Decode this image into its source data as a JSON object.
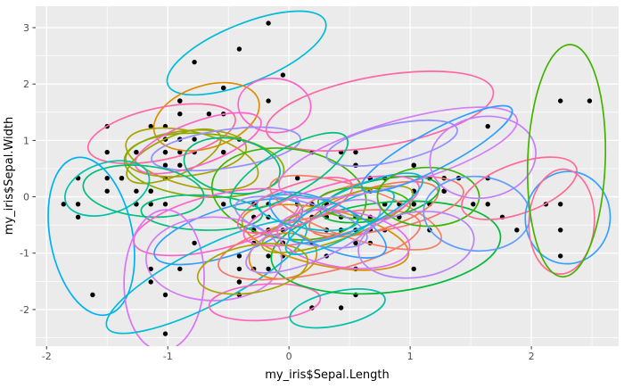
{
  "chart_data": {
    "type": "scatter",
    "title": "",
    "xlabel": "my_iris$Sepal.Length",
    "ylabel": "my_iris$Sepal.Width",
    "xlim": [
      -2.09,
      2.72
    ],
    "ylim": [
      -2.65,
      3.38
    ],
    "x_ticks": [
      -2,
      -1,
      0,
      1,
      2
    ],
    "y_ticks": [
      3,
      2,
      1,
      0,
      -1,
      -2
    ],
    "x_tick_labels": [
      "-2",
      "-1",
      "0",
      "1",
      "2"
    ],
    "y_tick_labels": [
      "3",
      "2",
      "1",
      "0",
      "-1",
      "-2"
    ],
    "grid": true,
    "legend": "none",
    "style": {
      "panel_bg": "#EBEBEB",
      "grid_color": "#FFFFFF",
      "point_color": "#000000",
      "point_radius": 2.7,
      "ellipse_stroke_width": 1.7,
      "tick_color": "#333333",
      "tick_label_color": "#4D4D4D",
      "axis_title_color": "#000000"
    },
    "points_note": "standardized iris data: x=scale(Sepal.Length), y=scale(Sepal.Width)",
    "points": [
      [
        -0.9,
        1.02
      ],
      [
        -1.14,
        -0.13
      ],
      [
        -1.38,
        0.33
      ],
      [
        -1.5,
        0.1
      ],
      [
        -1.02,
        1.25
      ],
      [
        -0.54,
        1.93
      ],
      [
        -1.5,
        0.79
      ],
      [
        -1.02,
        0.79
      ],
      [
        -1.74,
        -0.36
      ],
      [
        -1.14,
        0.1
      ],
      [
        -0.54,
        1.47
      ],
      [
        -1.26,
        0.79
      ],
      [
        -1.26,
        -0.13
      ],
      [
        -1.86,
        -0.13
      ],
      [
        -0.05,
        2.16
      ],
      [
        -0.17,
        3.08
      ],
      [
        -0.54,
        1.93
      ],
      [
        -0.9,
        1.02
      ],
      [
        -0.17,
        1.7
      ],
      [
        -0.9,
        1.7
      ],
      [
        -0.54,
        0.79
      ],
      [
        -0.9,
        1.47
      ],
      [
        -1.5,
        1.25
      ],
      [
        -0.9,
        0.56
      ],
      [
        -1.26,
        0.79
      ],
      [
        -1.02,
        -0.13
      ],
      [
        -1.02,
        0.79
      ],
      [
        -0.78,
        1.02
      ],
      [
        -0.78,
        0.79
      ],
      [
        -1.38,
        0.33
      ],
      [
        -1.26,
        0.1
      ],
      [
        -0.54,
        0.79
      ],
      [
        -0.78,
        2.39
      ],
      [
        -0.41,
        2.62
      ],
      [
        -1.14,
        0.1
      ],
      [
        -1.02,
        0.33
      ],
      [
        -0.41,
        1.02
      ],
      [
        -1.14,
        1.25
      ],
      [
        -1.74,
        -0.13
      ],
      [
        -0.9,
        0.79
      ],
      [
        -1.02,
        1.02
      ],
      [
        -1.62,
        -1.74
      ],
      [
        -1.74,
        0.33
      ],
      [
        -1.02,
        1.02
      ],
      [
        -0.9,
        1.7
      ],
      [
        -1.26,
        -0.13
      ],
      [
        -0.9,
        1.7
      ],
      [
        -1.5,
        0.33
      ],
      [
        -0.66,
        1.47
      ],
      [
        -1.02,
        0.56
      ],
      [
        1.4,
        0.33
      ],
      [
        0.67,
        0.33
      ],
      [
        1.28,
        0.1
      ],
      [
        -0.41,
        -1.74
      ],
      [
        0.79,
        -0.59
      ],
      [
        -0.17,
        -0.59
      ],
      [
        0.55,
        0.56
      ],
      [
        -1.14,
        -1.51
      ],
      [
        0.91,
        -0.36
      ],
      [
        -0.78,
        -0.82
      ],
      [
        -1.02,
        -2.43
      ],
      [
        0.07,
        -0.13
      ],
      [
        0.19,
        -1.97
      ],
      [
        0.31,
        -0.36
      ],
      [
        -0.29,
        -0.36
      ],
      [
        1.03,
        0.1
      ],
      [
        -0.29,
        -0.13
      ],
      [
        -0.05,
        -0.82
      ],
      [
        0.43,
        -1.97
      ],
      [
        -0.29,
        -1.28
      ],
      [
        0.07,
        0.33
      ],
      [
        0.31,
        -0.59
      ],
      [
        0.55,
        -1.28
      ],
      [
        0.31,
        -0.59
      ],
      [
        0.67,
        -0.36
      ],
      [
        0.91,
        -0.13
      ],
      [
        1.16,
        -0.59
      ],
      [
        1.03,
        -0.13
      ],
      [
        0.19,
        -0.36
      ],
      [
        -0.17,
        -1.05
      ],
      [
        -0.41,
        -1.51
      ],
      [
        -0.41,
        -1.51
      ],
      [
        -0.05,
        -0.82
      ],
      [
        0.19,
        -0.82
      ],
      [
        -0.54,
        -0.13
      ],
      [
        0.19,
        0.79
      ],
      [
        1.03,
        0.1
      ],
      [
        0.55,
        -1.74
      ],
      [
        -0.29,
        -0.13
      ],
      [
        -0.41,
        -1.28
      ],
      [
        -0.41,
        -1.05
      ],
      [
        0.31,
        -0.13
      ],
      [
        -0.05,
        -1.05
      ],
      [
        -1.02,
        -1.74
      ],
      [
        -0.29,
        -0.82
      ],
      [
        -0.17,
        -0.13
      ],
      [
        -0.17,
        -0.36
      ],
      [
        0.43,
        -0.36
      ],
      [
        -0.9,
        -1.28
      ],
      [
        -0.17,
        -0.59
      ],
      [
        0.55,
        0.56
      ],
      [
        -0.05,
        -0.82
      ],
      [
        1.52,
        -0.13
      ],
      [
        0.55,
        -0.36
      ],
      [
        0.79,
        -0.13
      ],
      [
        2.12,
        -0.13
      ],
      [
        -1.14,
        -1.28
      ],
      [
        1.76,
        -0.36
      ],
      [
        1.03,
        -1.28
      ],
      [
        1.64,
        1.25
      ],
      [
        0.79,
        0.33
      ],
      [
        0.67,
        -0.82
      ],
      [
        1.16,
        -0.13
      ],
      [
        -0.17,
        -1.28
      ],
      [
        -0.05,
        -0.59
      ],
      [
        0.67,
        0.33
      ],
      [
        0.79,
        -0.13
      ],
      [
        2.24,
        1.7
      ],
      [
        2.24,
        -1.05
      ],
      [
        0.19,
        -1.97
      ],
      [
        1.28,
        0.33
      ],
      [
        -0.29,
        -0.59
      ],
      [
        2.24,
        -0.59
      ],
      [
        0.55,
        -0.82
      ],
      [
        1.03,
        0.56
      ],
      [
        1.64,
        0.33
      ],
      [
        0.43,
        -0.59
      ],
      [
        0.31,
        -0.13
      ],
      [
        0.67,
        -0.59
      ],
      [
        1.64,
        -0.13
      ],
      [
        1.88,
        -0.59
      ],
      [
        2.48,
        1.7
      ],
      [
        0.67,
        -0.59
      ],
      [
        0.55,
        -0.59
      ],
      [
        0.31,
        -1.05
      ],
      [
        2.24,
        -0.13
      ],
      [
        0.55,
        0.79
      ],
      [
        0.67,
        0.1
      ],
      [
        0.19,
        -0.13
      ],
      [
        1.28,
        0.1
      ],
      [
        1.03,
        0.1
      ],
      [
        1.28,
        0.1
      ],
      [
        -0.05,
        -0.82
      ],
      [
        1.16,
        0.33
      ],
      [
        1.03,
        0.56
      ],
      [
        1.03,
        -0.13
      ],
      [
        0.55,
        -1.28
      ],
      [
        0.79,
        -0.13
      ],
      [
        0.43,
        0.79
      ],
      [
        0.07,
        -0.13
      ]
    ],
    "ellipse_format": [
      "cx",
      "cy",
      "rx",
      "ry",
      "rot_deg",
      "color"
    ],
    "ellipses": [
      [
        -0.35,
        2.55,
        0.7,
        0.52,
        -22,
        "#00BCD8"
      ],
      [
        0.75,
        1.52,
        0.95,
        0.62,
        -10,
        "#FF67A4"
      ],
      [
        -0.68,
        1.42,
        0.45,
        0.55,
        -18,
        "#DE8C00"
      ],
      [
        -0.12,
        1.62,
        0.3,
        0.48,
        4,
        "#FF61C9"
      ],
      [
        -1.05,
        1.12,
        0.62,
        0.46,
        -12,
        "#FF67A4"
      ],
      [
        -0.85,
        0.77,
        0.5,
        0.4,
        -6,
        "#A3A500"
      ],
      [
        -0.8,
        0.67,
        0.56,
        0.48,
        14,
        "#A9A400"
      ],
      [
        -0.95,
        0.72,
        0.42,
        0.34,
        -24,
        "#9DA400"
      ],
      [
        -0.7,
        0.56,
        0.66,
        0.56,
        4,
        "#84AD00"
      ],
      [
        -0.52,
        0.85,
        0.62,
        0.34,
        -8,
        "#9590FF"
      ],
      [
        -0.75,
        0.95,
        0.55,
        0.38,
        -20,
        "#FF61C9"
      ],
      [
        0.0,
        0.05,
        0.64,
        0.8,
        8,
        "#39B600"
      ],
      [
        -1.5,
        0.15,
        0.36,
        0.45,
        -18,
        "#00C1A9"
      ],
      [
        -1.2,
        0.1,
        0.5,
        0.45,
        6,
        "#00BF7D"
      ],
      [
        -0.47,
        0.55,
        0.4,
        0.48,
        10,
        "#00BA7F"
      ],
      [
        -1.63,
        -0.7,
        0.34,
        1.42,
        -11,
        "#00B0F6"
      ],
      [
        -0.72,
        -0.28,
        0.5,
        0.31,
        2,
        "#00BF7D"
      ],
      [
        -0.6,
        -0.45,
        0.7,
        0.48,
        -14,
        "#FF61C9"
      ],
      [
        -0.5,
        -0.62,
        0.64,
        0.42,
        -18,
        "#2E9FFF"
      ],
      [
        -1.03,
        -1.48,
        0.33,
        1.25,
        2,
        "#DA72FB"
      ],
      [
        -0.62,
        -1.1,
        0.56,
        0.74,
        0,
        "#D57BF7"
      ],
      [
        -0.68,
        -1.42,
        0.92,
        0.5,
        -27,
        "#00BCD8"
      ],
      [
        -0.2,
        -1.87,
        0.46,
        0.32,
        -4,
        "#FF64C2"
      ],
      [
        0.4,
        -1.98,
        0.4,
        0.3,
        -12,
        "#00C1A9"
      ],
      [
        0.8,
        -0.9,
        0.95,
        0.8,
        -6,
        "#00BA38"
      ],
      [
        -0.05,
        -1.05,
        0.28,
        0.4,
        -8,
        "#DE8C00"
      ],
      [
        0.3,
        -0.72,
        0.7,
        0.5,
        12,
        "#D89000"
      ],
      [
        0.25,
        -0.85,
        0.85,
        0.5,
        -12,
        "#F8766D"
      ],
      [
        0.75,
        -0.15,
        0.7,
        0.45,
        -10,
        "#F8766D"
      ],
      [
        0.7,
        -0.22,
        0.55,
        0.38,
        -16,
        "#F07852"
      ],
      [
        0.55,
        -0.28,
        0.74,
        0.46,
        18,
        "#FA7E64"
      ],
      [
        0.75,
        -0.05,
        0.5,
        0.35,
        -12,
        "#00BA38"
      ],
      [
        0.62,
        -0.12,
        0.38,
        0.28,
        2,
        "#39B600"
      ],
      [
        0.4,
        -0.4,
        0.66,
        0.36,
        -20,
        "#A3A500"
      ],
      [
        0.32,
        -0.5,
        0.52,
        0.4,
        24,
        "#2E9FFF"
      ],
      [
        0.1,
        -0.45,
        0.56,
        0.36,
        14,
        "#9590FF"
      ],
      [
        0.2,
        -0.7,
        0.6,
        0.42,
        -24,
        "#B983FF"
      ],
      [
        0.45,
        -0.75,
        0.55,
        0.5,
        8,
        "#E76BF3"
      ],
      [
        0.35,
        -0.25,
        0.75,
        0.45,
        -16,
        "#FF61C9"
      ],
      [
        0.42,
        -0.45,
        0.5,
        0.3,
        -28,
        "#00C0C4"
      ],
      [
        0.15,
        -0.28,
        0.42,
        0.28,
        10,
        "#00BCD8"
      ],
      [
        0.55,
        -0.2,
        0.6,
        0.36,
        -24,
        "#00B8E0"
      ],
      [
        0.9,
        0.78,
        1.02,
        0.56,
        -16,
        "#D57BF7"
      ],
      [
        1.22,
        0.85,
        0.7,
        0.33,
        -28,
        "#2E9FFF"
      ],
      [
        1.15,
        0.0,
        0.42,
        0.52,
        0,
        "#39B600"
      ],
      [
        1.6,
        0.7,
        0.44,
        0.72,
        -10,
        "#C77CFF"
      ],
      [
        1.55,
        -0.3,
        0.44,
        0.66,
        4,
        "#619CFF"
      ],
      [
        1.9,
        0.15,
        0.5,
        0.44,
        -20,
        "#FF6B94"
      ],
      [
        2.3,
        -0.37,
        0.35,
        0.82,
        6,
        "#35A2FF"
      ],
      [
        2.25,
        -0.44,
        0.27,
        0.93,
        3,
        "#FF6B94"
      ],
      [
        2.29,
        0.64,
        0.32,
        2.06,
        2,
        "#43B300"
      ],
      [
        0.85,
        0.95,
        0.55,
        0.33,
        -12,
        "#9590FF"
      ],
      [
        -0.3,
        -1.28,
        0.46,
        0.42,
        -10,
        "#A8A400"
      ],
      [
        0.05,
        -0.15,
        0.5,
        0.35,
        -20,
        "#FF67A4"
      ],
      [
        1.05,
        -0.85,
        0.48,
        0.58,
        -8,
        "#BC83F8"
      ],
      [
        0.0,
        0.45,
        0.55,
        0.4,
        -30,
        "#00BF7D"
      ]
    ]
  }
}
